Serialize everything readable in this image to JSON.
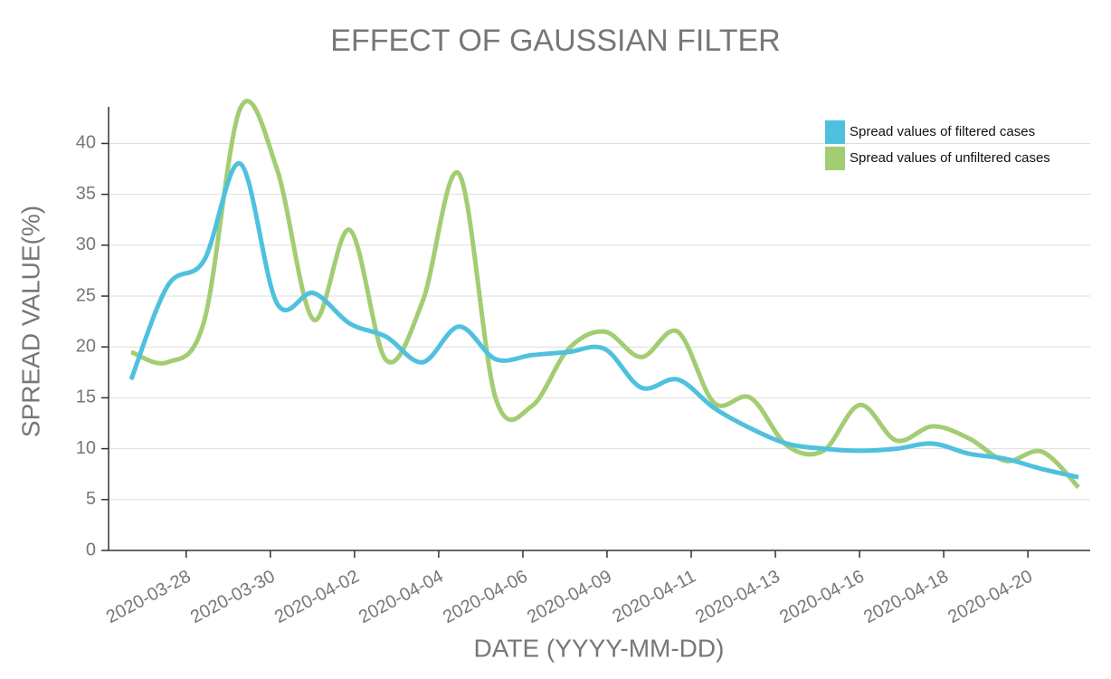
{
  "chart_data": {
    "type": "line",
    "title": "EFFECT OF GAUSSIAN FILTER",
    "x_label": "DATE (YYYY-MM-DD)",
    "y_label": "SPREAD VALUE(%)",
    "x": [
      0,
      1,
      2,
      3,
      4,
      5,
      6,
      7,
      8,
      9,
      10,
      11,
      12,
      13,
      14,
      15,
      16,
      17,
      18,
      19,
      20,
      21,
      22,
      23,
      24,
      25,
      26
    ],
    "xlim": [
      -0.62,
      26.32
    ],
    "xticks": [
      {
        "value": 1.51,
        "label": "2020-03-28"
      },
      {
        "value": 3.82,
        "label": "2020-03-30"
      },
      {
        "value": 6.13,
        "label": "2020-04-02"
      },
      {
        "value": 8.44,
        "label": "2020-04-04"
      },
      {
        "value": 10.75,
        "label": "2020-04-06"
      },
      {
        "value": 13.06,
        "label": "2020-04-09"
      },
      {
        "value": 15.37,
        "label": "2020-04-11"
      },
      {
        "value": 17.68,
        "label": "2020-04-13"
      },
      {
        "value": 19.99,
        "label": "2020-04-16"
      },
      {
        "value": 22.3,
        "label": "2020-04-18"
      },
      {
        "value": 24.61,
        "label": "2020-04-20"
      }
    ],
    "ylim": [
      0,
      43.6
    ],
    "yticks": [
      0,
      5,
      10,
      15,
      20,
      25,
      30,
      35,
      40
    ],
    "grid": true,
    "legend": "top-right",
    "series": [
      {
        "name": "Spread values of filtered cases",
        "color": "#4fc1de",
        "values": [
          16.8,
          26,
          28.5,
          38,
          24.3,
          25.3,
          22.3,
          21,
          18.5,
          22,
          18.8,
          19.2,
          19.5,
          19.8,
          16,
          16.8,
          14,
          12,
          10.5,
          10,
          9.8,
          10,
          10.5,
          9.5,
          9,
          8,
          7.2
        ]
      },
      {
        "name": "Spread values of unfiltered cases",
        "color": "#a3cd73",
        "values": [
          19.5,
          18.5,
          22.5,
          43.5,
          37.5,
          22.7,
          31.5,
          18.7,
          24.5,
          37,
          15,
          14.2,
          19.8,
          21.5,
          19,
          21.5,
          14.5,
          15,
          10.3,
          9.8,
          14.3,
          10.8,
          12.2,
          11,
          8.8,
          9.7,
          6.2
        ]
      }
    ]
  }
}
